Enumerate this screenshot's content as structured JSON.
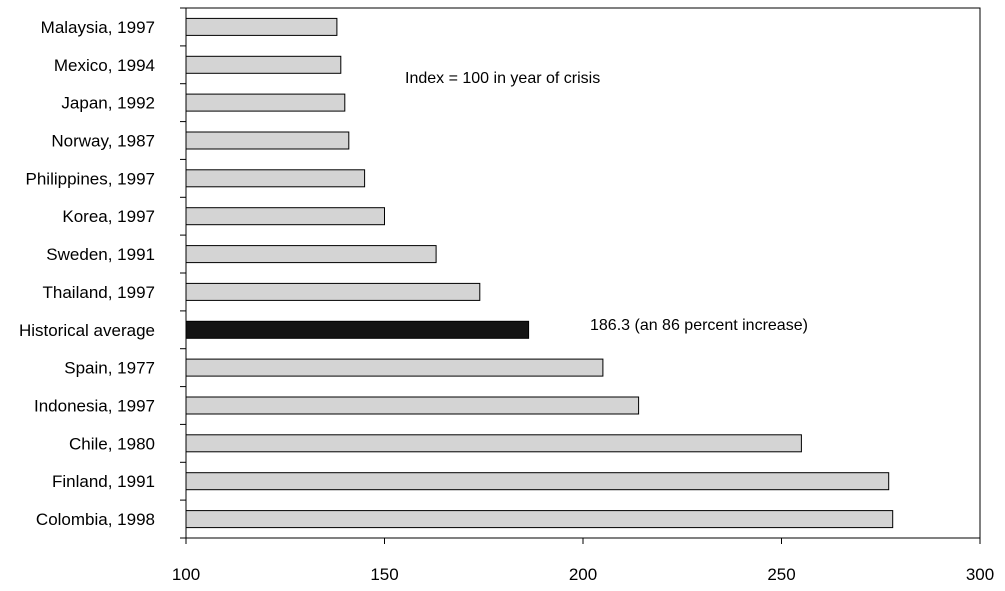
{
  "chart_data": {
    "type": "bar",
    "orientation": "horizontal",
    "title": "",
    "xlabel": "",
    "ylabel": "",
    "xlim": [
      100,
      300
    ],
    "x_ticks": [
      100,
      150,
      200,
      250,
      300
    ],
    "grid": false,
    "legend": "none",
    "categories": [
      "Malaysia, 1997",
      "Mexico, 1994",
      "Japan, 1992",
      "Norway, 1987",
      "Philippines, 1997",
      "Korea, 1997",
      "Sweden, 1991",
      "Thailand, 1997",
      "Historical average",
      "Spain, 1977",
      "Indonesia, 1997",
      "Chile, 1980",
      "Finland, 1991",
      "Colombia, 1998"
    ],
    "values": [
      138,
      139,
      140,
      141,
      145,
      150,
      163,
      174,
      186.3,
      205,
      214,
      255,
      277,
      278
    ],
    "highlight_category": "Historical average",
    "annotations": [
      {
        "text": "Index = 100 in year of crisis"
      },
      {
        "text": "186.3 (an 86 percent increase)"
      }
    ],
    "colors": {
      "bar": "#d4d4d4",
      "highlight": "#141414",
      "outline": "#000000"
    }
  }
}
